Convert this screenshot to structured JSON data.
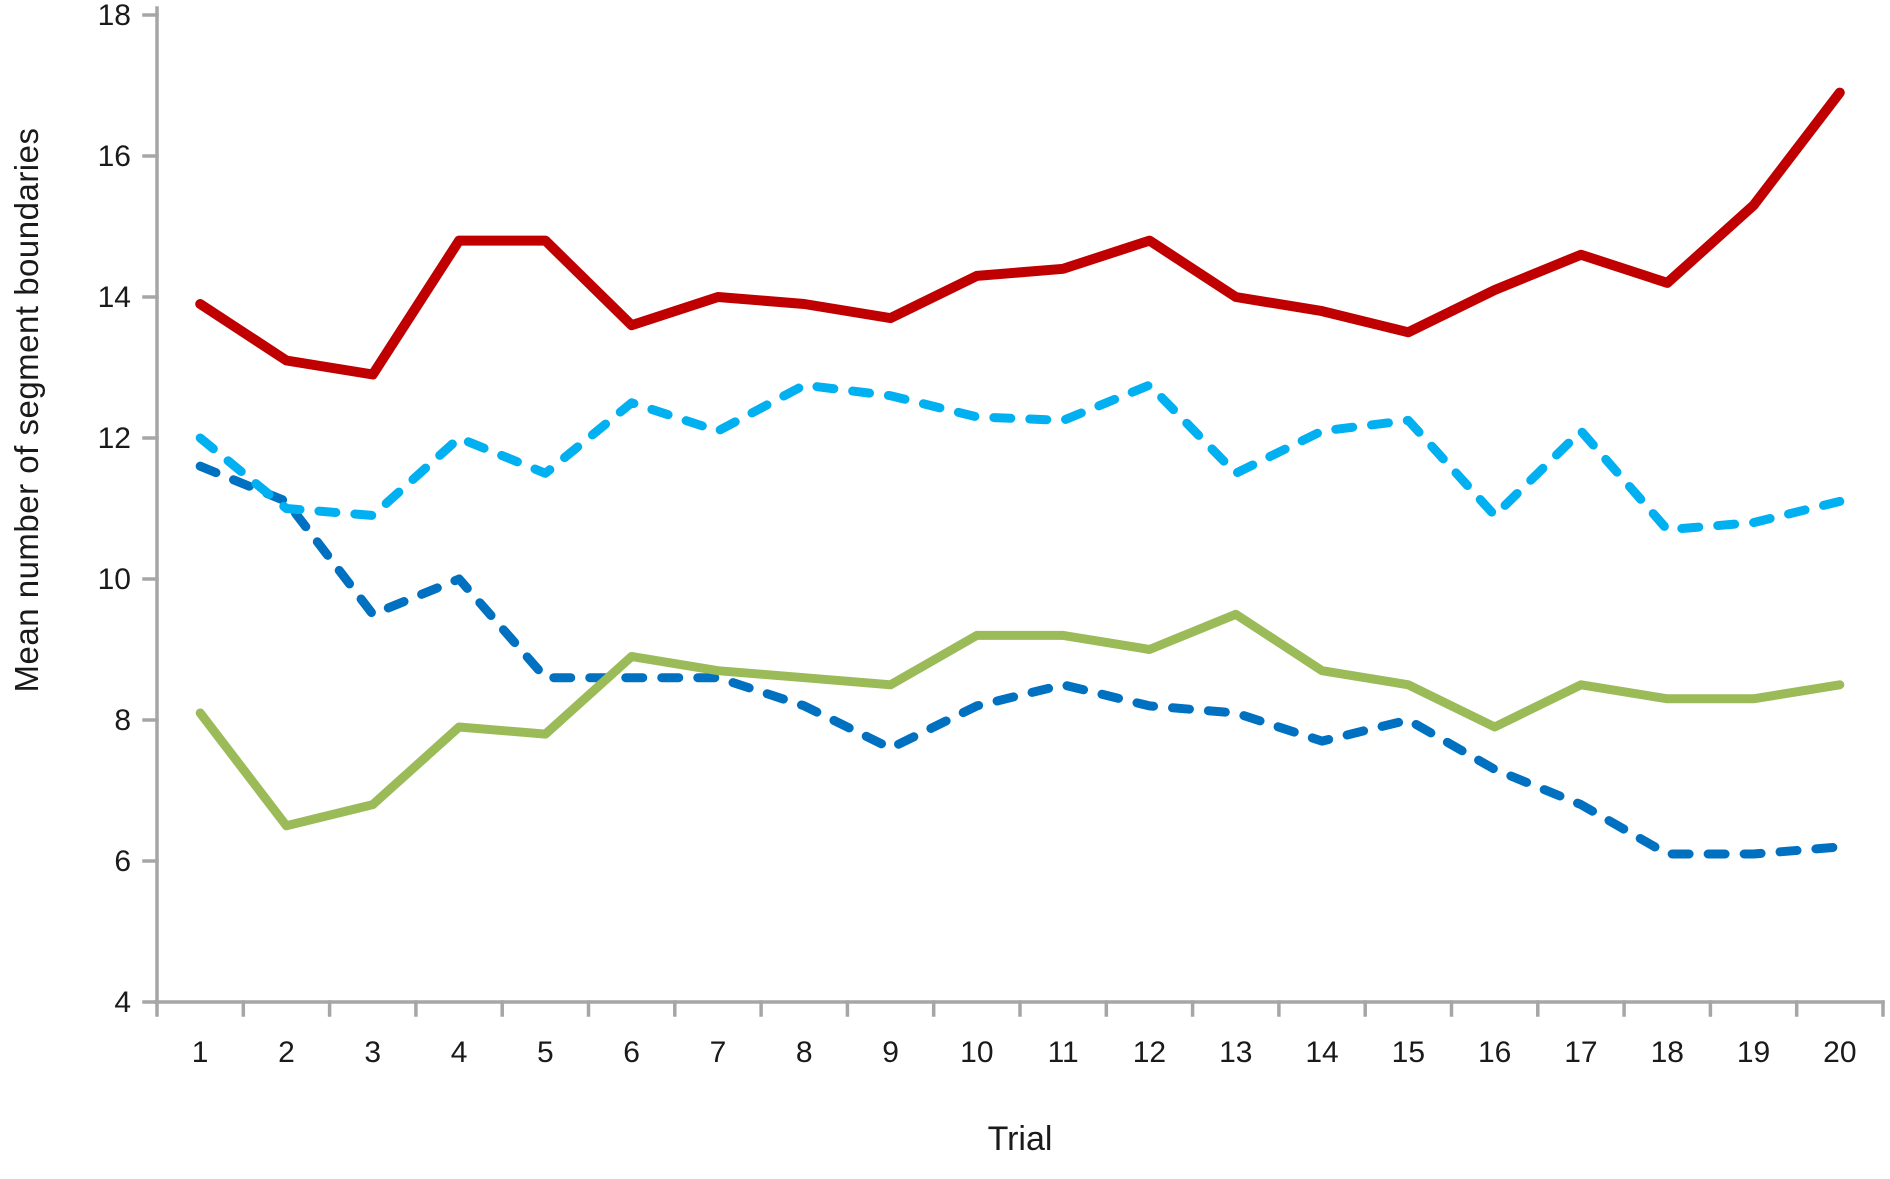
{
  "chart_data": {
    "type": "line",
    "title": "",
    "xlabel": "Trial",
    "ylabel": "Mean number of segment boundaries",
    "x": [
      1,
      2,
      3,
      4,
      5,
      6,
      7,
      8,
      9,
      10,
      11,
      12,
      13,
      14,
      15,
      16,
      17,
      18,
      19,
      20
    ],
    "ylim": [
      4,
      18
    ],
    "y_ticks": [
      4,
      6,
      8,
      10,
      12,
      14,
      16,
      18
    ],
    "grid": false,
    "legend_position": "none",
    "style": {
      "axis_color": "#A6A6A6",
      "text_color": "#1A1A1A",
      "background": "#FFFFFF"
    },
    "series": [
      {
        "id": "dark-blue-dashed",
        "line_style": "dashed",
        "color": "#0070C0",
        "width": 9,
        "values": [
          11.6,
          11.1,
          9.5,
          10.0,
          8.6,
          8.6,
          8.6,
          8.2,
          7.6,
          8.2,
          8.5,
          8.2,
          8.1,
          7.7,
          8.0,
          7.3,
          6.8,
          6.1,
          6.1,
          6.2
        ]
      },
      {
        "id": "light-blue-dashed",
        "line_style": "dashed",
        "color": "#00B0F0",
        "width": 9,
        "values": [
          12.0,
          11.0,
          10.9,
          12.0,
          11.5,
          12.5,
          12.1,
          12.75,
          12.6,
          12.3,
          12.25,
          12.75,
          11.5,
          12.1,
          12.25,
          10.9,
          12.1,
          10.7,
          10.8,
          11.1
        ]
      },
      {
        "id": "green-solid",
        "line_style": "solid",
        "color": "#9BBB59",
        "width": 9,
        "values": [
          8.1,
          6.5,
          6.8,
          7.9,
          7.8,
          8.9,
          8.7,
          8.6,
          8.5,
          9.2,
          9.2,
          9.0,
          9.5,
          8.7,
          8.5,
          7.9,
          8.5,
          8.3,
          8.3,
          8.5
        ]
      },
      {
        "id": "dark-red-solid",
        "line_style": "solid",
        "color": "#C00000",
        "width": 10,
        "values": [
          13.9,
          13.1,
          12.9,
          14.8,
          14.8,
          13.6,
          14.0,
          13.9,
          13.7,
          14.3,
          14.4,
          14.8,
          14.0,
          13.8,
          13.5,
          14.1,
          14.6,
          14.2,
          15.3,
          16.9
        ]
      }
    ]
  }
}
